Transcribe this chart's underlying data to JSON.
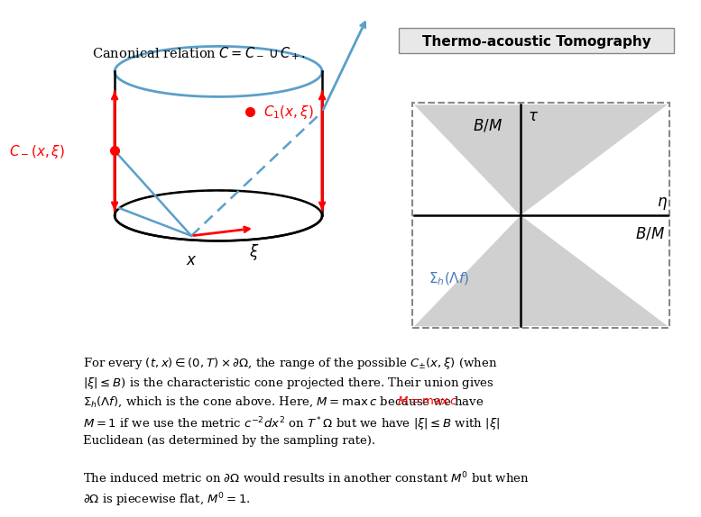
{
  "title": "Thermo-acoustic Tomography",
  "title_box_color": "#e8e8e8",
  "title_fontsize": 11,
  "bg_color": "#ffffff",
  "canonical_text": "Canonical relation $C = C_- \\cup C_+$.",
  "body_text_1": "For every $(t,x) \\in (0,T) \\times \\partial\\Omega$, the range of the possible $C_{\\pm}(x,\\xi)$ (when\n$|\\xi| \\leq B$) is the characteristic cone projected there. Their union gives\n$\\Sigma_h(\\Lambda f)$, which is the cone above. Here, $M = \\mathrm{max}\\, c$ because we have\n$M = 1$ if we use the metric $c^{-2}dx^2$ on $T^*\\Omega$ but we have $|\\xi| \\leq B$ with $|\\xi|$\nEuclidean (as determined by the sampling rate).",
  "body_text_2": "The induced metric on $\\partial\\Omega$ would results in another constant $M'$ but when\n$\\partial\\Omega$ is piecewise flat, $M' = 1$.",
  "cone_gray": "#d0d0d0",
  "cone_label_color": "#4a7ab5",
  "hourglass_label_eta": "$\\eta$",
  "hourglass_label_tau": "$\\tau$",
  "hourglass_label_BM_top": "$B/M$",
  "hourglass_label_BM_right": "$B/M$",
  "hourglass_label_sigma": "$\\Sigma_h(\\Lambda f)$"
}
